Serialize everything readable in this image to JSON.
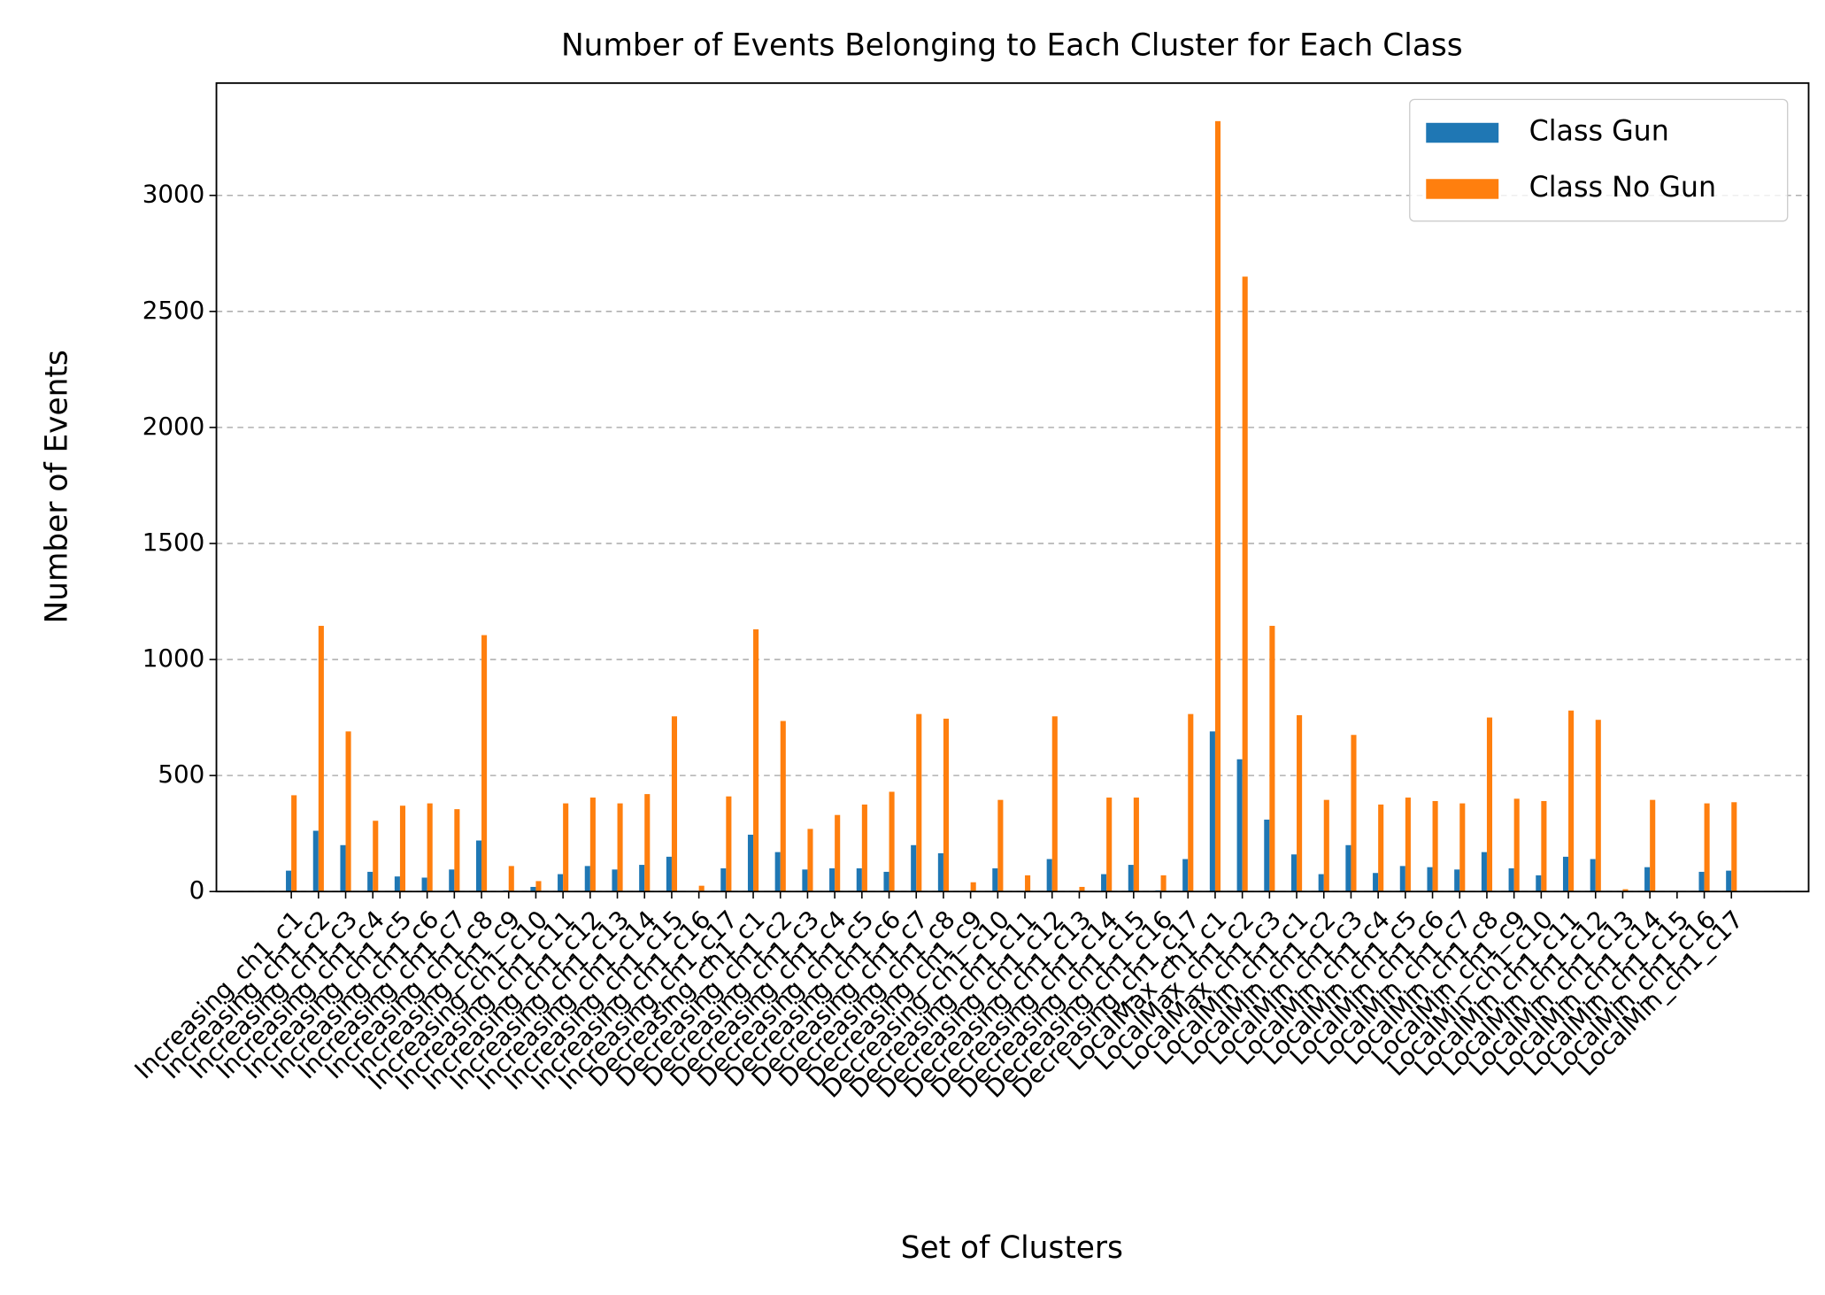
{
  "chart_data": {
    "type": "bar",
    "title": "Number of Events Belonging to Each Cluster for Each Class",
    "xlabel": "Set of Clusters",
    "ylabel": "Number of Events",
    "categories": [
      "Increasing_ch1_c1",
      "Increasing_ch1_c2",
      "Increasing_ch1_c3",
      "Increasing_ch1_c4",
      "Increasing_ch1_c5",
      "Increasing_ch1_c6",
      "Increasing_ch1_c7",
      "Increasing_ch1_c8",
      "Increasing_ch1_c9",
      "Increasing_ch1_c10",
      "Increasing_ch1_c11",
      "Increasing_ch1_c12",
      "Increasing_ch1_c13",
      "Increasing_ch1_c14",
      "Increasing_ch1_c15",
      "Increasing_ch1_c16",
      "Increasing_ch1_c17",
      "Decreasing_ch1_c1",
      "Decreasing_ch1_c2",
      "Decreasing_ch1_c3",
      "Decreasing_ch1_c4",
      "Decreasing_ch1_c5",
      "Decreasing_ch1_c6",
      "Decreasing_ch1_c7",
      "Decreasing_ch1_c8",
      "Decreasing_ch1_c9",
      "Decreasing_ch1_c10",
      "Decreasing_ch1_c11",
      "Decreasing_ch1_c12",
      "Decreasing_ch1_c13",
      "Decreasing_ch1_c14",
      "Decreasing_ch1_c15",
      "Decreasing_ch1_c16",
      "Decreasing_ch1_c17",
      "LocalMax_ch1_c1",
      "LocalMax_ch1_c2",
      "LocalMax_ch1_c3",
      "LocalMin_ch1_c1",
      "LocalMin_ch1_c2",
      "LocalMin_ch1_c3",
      "LocalMin_ch1_c4",
      "LocalMin_ch1_c5",
      "LocalMin_ch1_c6",
      "LocalMin_ch1_c7",
      "LocalMin_ch1_c8",
      "LocalMin_ch1_c9",
      "LocalMin_ch1_c10",
      "LocalMin_ch1_c11",
      "LocalMin_ch1_c12",
      "LocalMin_ch1_c13",
      "LocalMin_ch1_c14",
      "LocalMin_ch1_c15",
      "LocalMin_ch1_c16",
      "LocalMin_ch1_c17"
    ],
    "series": [
      {
        "name": "Class Gun",
        "color": "#1f77b4",
        "values": [
          90,
          262,
          200,
          85,
          65,
          60,
          95,
          220,
          5,
          20,
          75,
          110,
          95,
          115,
          150,
          0,
          100,
          245,
          170,
          95,
          100,
          100,
          85,
          200,
          165,
          0,
          100,
          2,
          140,
          0,
          75,
          115,
          5,
          140,
          690,
          570,
          310,
          160,
          75,
          200,
          80,
          110,
          105,
          95,
          170,
          100,
          70,
          150,
          140,
          0,
          105,
          0,
          85,
          90
        ]
      },
      {
        "name": "Class No Gun",
        "color": "#ff7f0e",
        "values": [
          415,
          1145,
          690,
          305,
          370,
          380,
          355,
          1105,
          110,
          45,
          380,
          405,
          380,
          420,
          755,
          25,
          410,
          1130,
          735,
          270,
          330,
          375,
          430,
          765,
          745,
          40,
          395,
          70,
          755,
          20,
          405,
          405,
          70,
          765,
          3320,
          2650,
          1145,
          760,
          395,
          675,
          375,
          405,
          390,
          380,
          750,
          400,
          390,
          780,
          740,
          10,
          395,
          0,
          380,
          385
        ]
      }
    ],
    "ylim": [
      0,
      3484
    ],
    "yticks": [
      0,
      500,
      1000,
      1500,
      2000,
      2500,
      3000
    ],
    "grid": true,
    "legend": "upper right"
  }
}
